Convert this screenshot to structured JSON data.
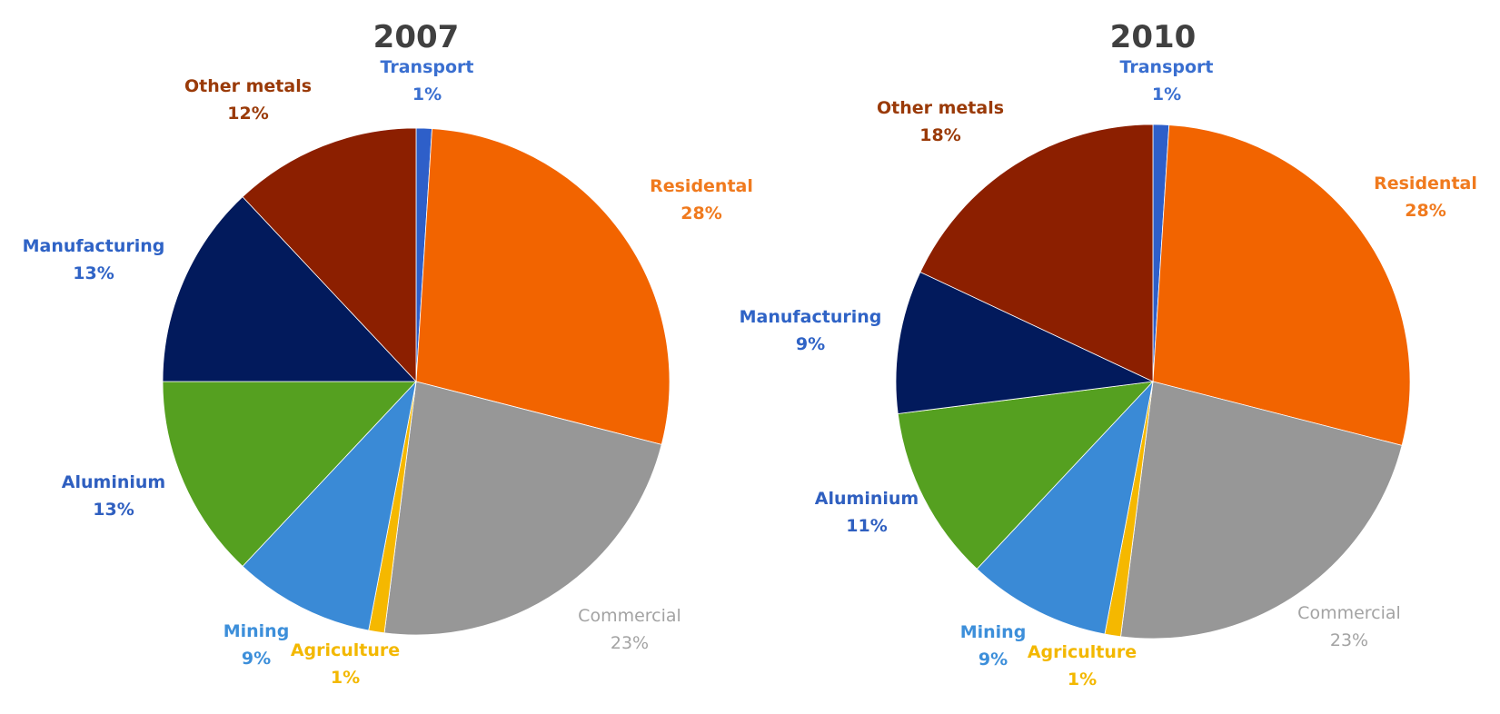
{
  "chart_data": [
    {
      "type": "pie",
      "title": "2007",
      "slices": [
        {
          "name": "Transport",
          "value": 1,
          "label": "1%",
          "color": "#2e5fc9",
          "label_color": "#3a6fd0"
        },
        {
          "name": "Residental",
          "value": 28,
          "label": "28%",
          "color": "#f26400",
          "label_color": "#f07a1e"
        },
        {
          "name": "Commercial",
          "value": 23,
          "label": "23%",
          "color": "#979797",
          "label_color": "#a3a3a3"
        },
        {
          "name": "Agriculture",
          "value": 1,
          "label": "1%",
          "color": "#f5b800",
          "label_color": "#f3b800"
        },
        {
          "name": "Mining",
          "value": 9,
          "label": "9%",
          "color": "#3a8ad6",
          "label_color": "#3d8fda"
        },
        {
          "name": "Aluminium",
          "value": 13,
          "label": "13%",
          "color": "#55a020",
          "label_color": "#2f5fc0"
        },
        {
          "name": "Manufacturing",
          "value": 13,
          "label": "13%",
          "color": "#021a5c",
          "label_color": "#2f63c6"
        },
        {
          "name": "Other metals",
          "value": 12,
          "label": "12%",
          "color": "#8c1f00",
          "label_color": "#9a3a08"
        }
      ]
    },
    {
      "type": "pie",
      "title": "2010",
      "slices": [
        {
          "name": "Transport",
          "value": 1,
          "label": "1%",
          "color": "#2e5fc9",
          "label_color": "#3a6fd0"
        },
        {
          "name": "Residental",
          "value": 28,
          "label": "28%",
          "color": "#f26400",
          "label_color": "#f07a1e"
        },
        {
          "name": "Commercial",
          "value": 23,
          "label": "23%",
          "color": "#979797",
          "label_color": "#a3a3a3"
        },
        {
          "name": "Agriculture",
          "value": 1,
          "label": "1%",
          "color": "#f5b800",
          "label_color": "#f3b800"
        },
        {
          "name": "Mining",
          "value": 9,
          "label": "9%",
          "color": "#3a8ad6",
          "label_color": "#3d8fda"
        },
        {
          "name": "Aluminium",
          "value": 11,
          "label": "11%",
          "color": "#55a020",
          "label_color": "#2f5fc0"
        },
        {
          "name": "Manufacturing",
          "value": 9,
          "label": "9%",
          "color": "#021a5c",
          "label_color": "#2f63c6"
        },
        {
          "name": "Other metals",
          "value": 18,
          "label": "18%",
          "color": "#8c1f00",
          "label_color": "#9a3a08"
        }
      ]
    }
  ]
}
